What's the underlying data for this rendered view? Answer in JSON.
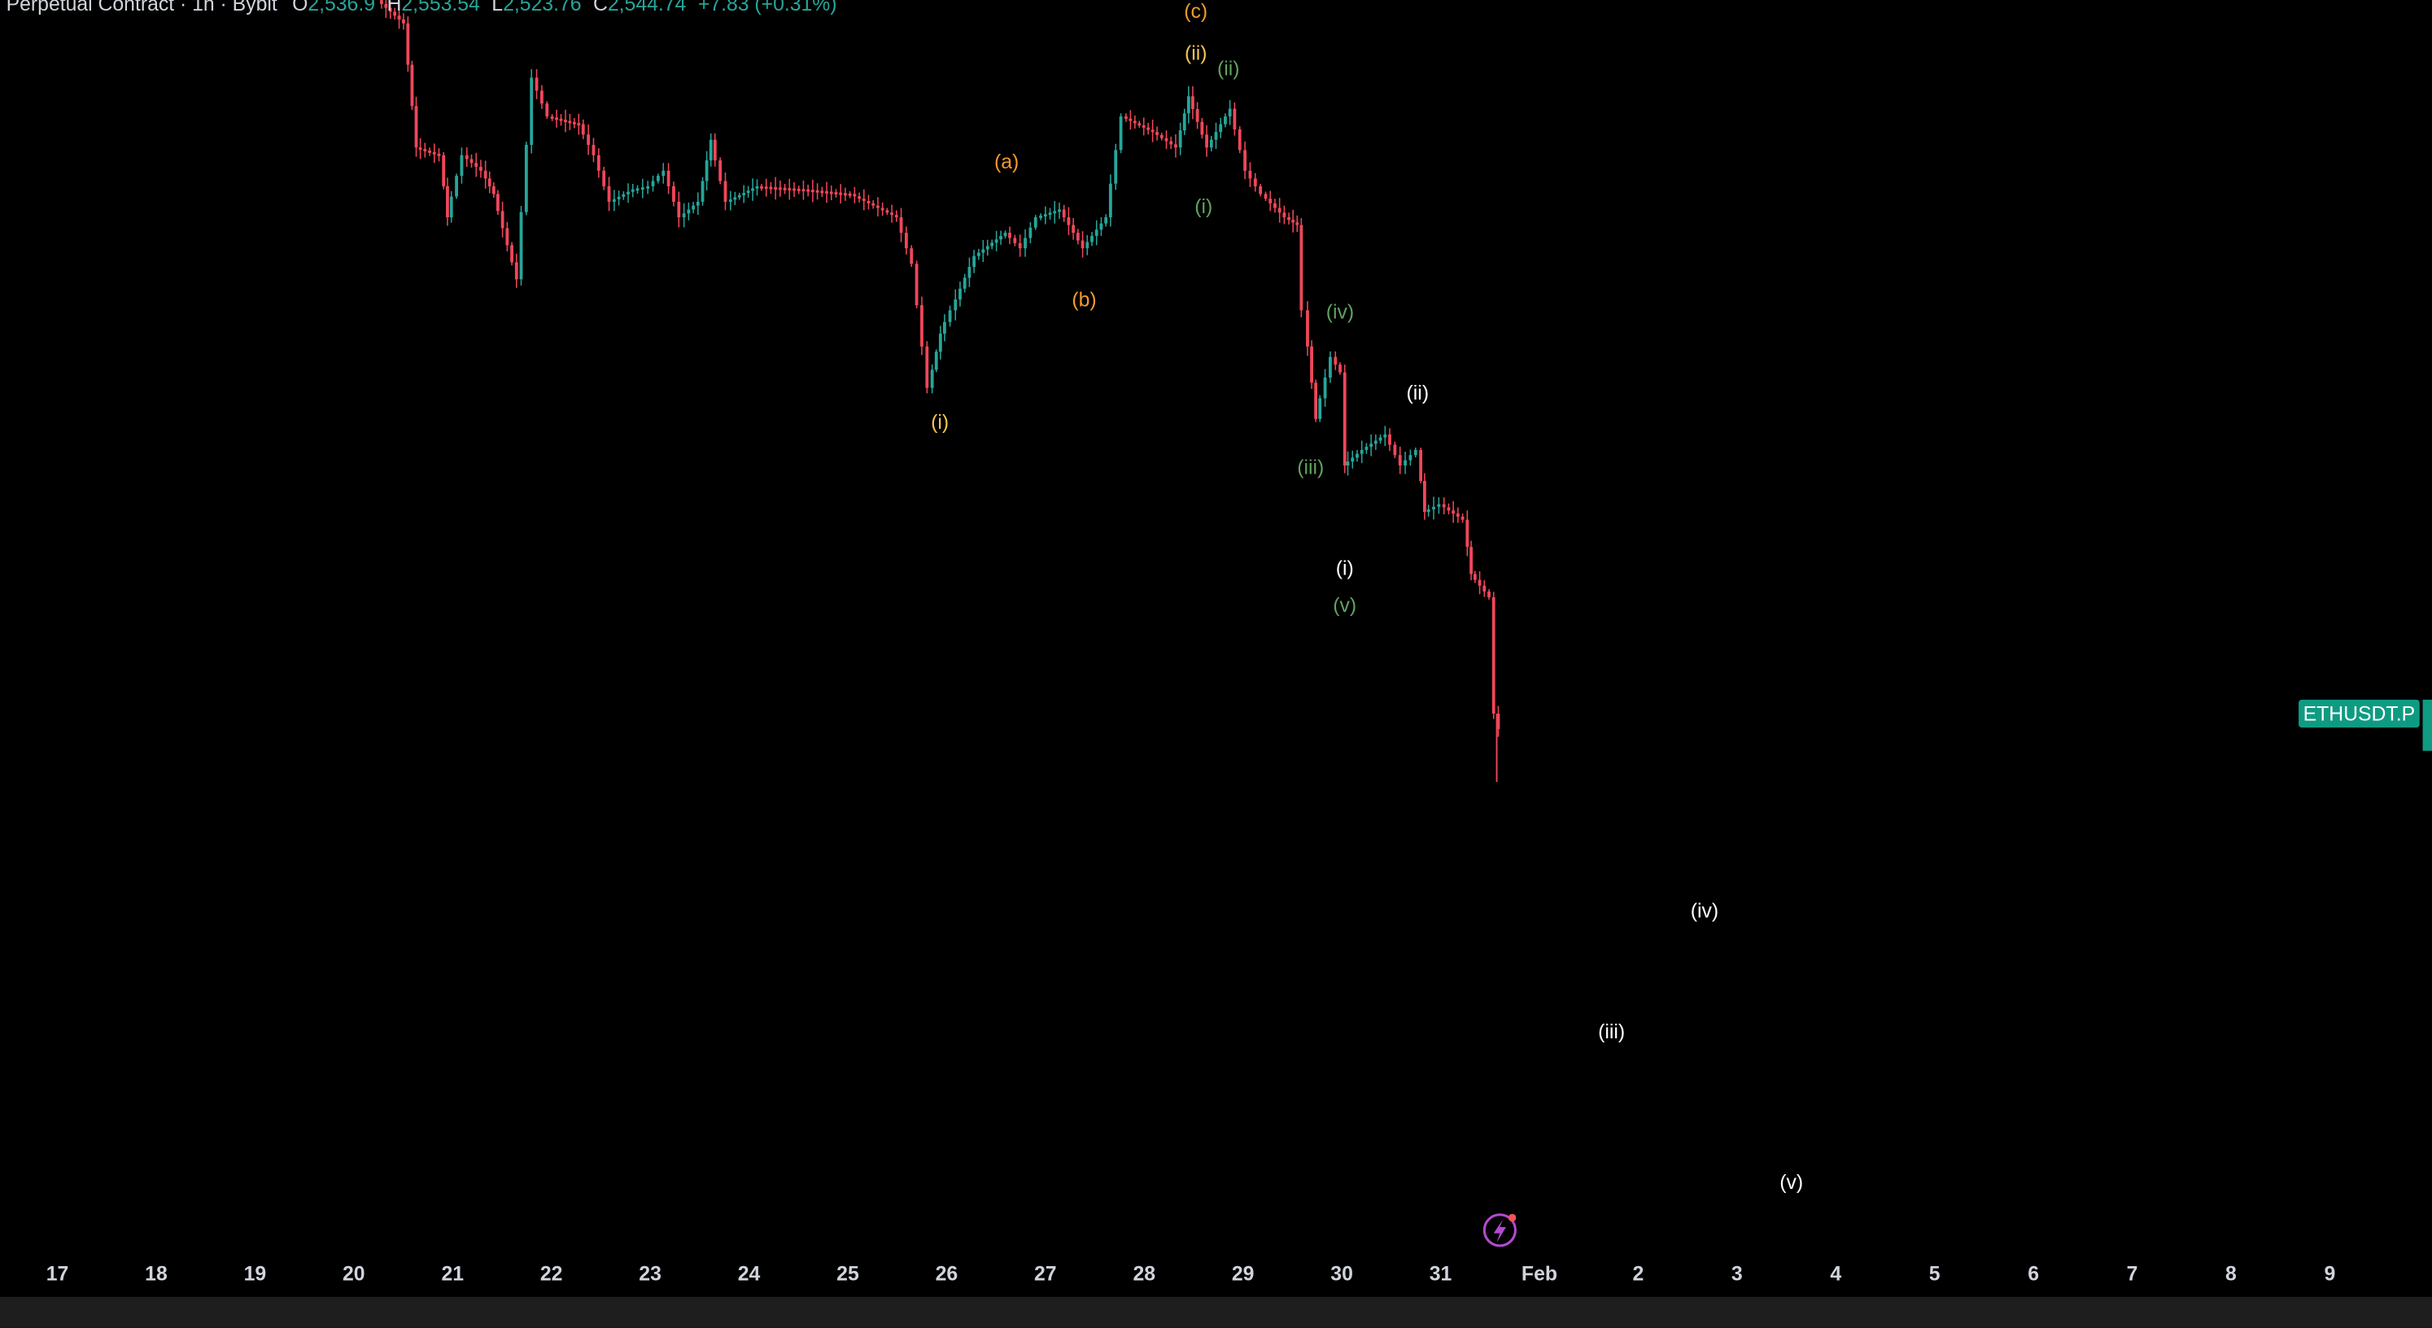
{
  "header": {
    "instrument": "Perpetual Contract · 1h · Bybit",
    "open_label": "O",
    "open": "2,536.9",
    "high_label": "H",
    "high": "2,553.54",
    "low_label": "L",
    "low": "2,523.76",
    "close_label": "C",
    "close": "2,544.74",
    "change": "+7.83 (+0.31%)"
  },
  "wave_labels": [
    {
      "text": "(c)",
      "color": "#f39a2e"
    },
    {
      "text": "(ii)",
      "color": "#f5c451"
    },
    {
      "text": "(ii)",
      "color": "#5fa35f"
    },
    {
      "text": "(a)",
      "color": "#f39a2e"
    },
    {
      "text": "(b)",
      "color": "#f39a2e"
    },
    {
      "text": "(i)",
      "color": "#5fa35f"
    },
    {
      "text": "(i)",
      "color": "#f5c451"
    },
    {
      "text": "(iv)",
      "color": "#5fa35f"
    },
    {
      "text": "(iii)",
      "color": "#5fa35f"
    },
    {
      "text": "(ii)",
      "color": "#ffffff"
    },
    {
      "text": "(i)",
      "color": "#ffffff"
    },
    {
      "text": "(v)",
      "color": "#5fa35f"
    },
    {
      "text": "(iv)",
      "color": "#ffffff"
    },
    {
      "text": "(iii)",
      "color": "#ffffff"
    },
    {
      "text": "(v)",
      "color": "#ffffff"
    }
  ],
  "x_axis": [
    "17",
    "18",
    "19",
    "20",
    "21",
    "22",
    "23",
    "24",
    "25",
    "26",
    "27",
    "28",
    "29",
    "30",
    "31",
    "Feb",
    "2",
    "3",
    "4",
    "5",
    "6",
    "7",
    "8",
    "9"
  ],
  "symbol_tag": "ETHUSDT.P"
}
